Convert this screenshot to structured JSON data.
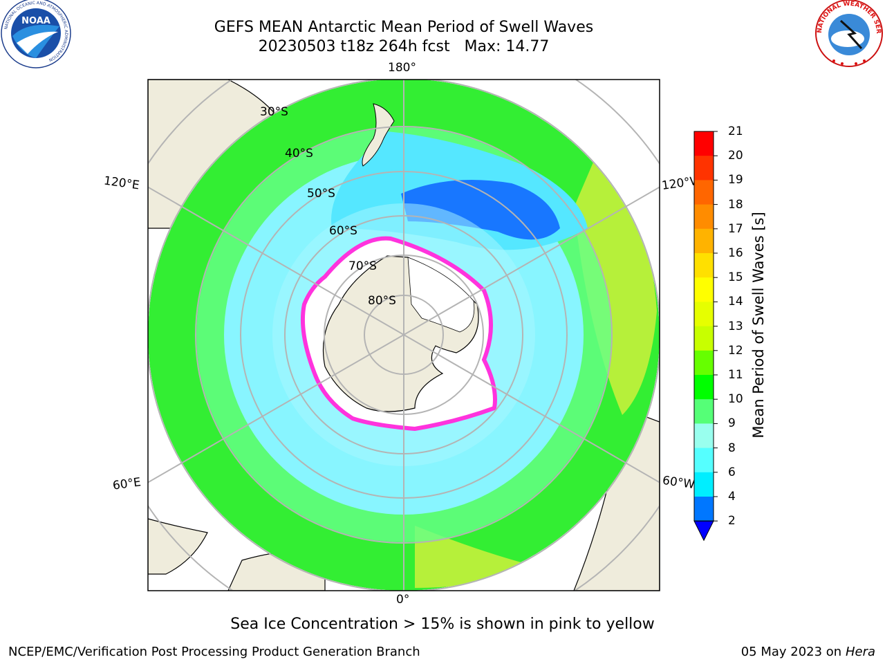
{
  "header": {
    "title_line1": "GEFS MEAN Antarctic Mean Period of Swell Waves",
    "title_line2": "20230503 t18z 264h fcst   Max: 14.77"
  },
  "logos": {
    "left_name": "NOAA",
    "left_ring_text": "NATIONAL OCEANIC AND ATMOSPHERIC ADMINISTRATION",
    "left_ring_text_bottom": "U.S. DEPARTMENT OF COMMERCE",
    "right_ring_text": "NATIONAL WEATHER SERVICE"
  },
  "map": {
    "longitude_labels": {
      "top": "180°",
      "bottom": "0°",
      "left_upper": "120°E",
      "right_upper": "120°W",
      "left_lower": "60°E",
      "right_lower": "60°W"
    },
    "latitude_labels": [
      "30°S",
      "40°S",
      "50°S",
      "60°S",
      "70°S",
      "80°S"
    ],
    "colors": {
      "land": "#efecdc",
      "ice_shelf": "#ffffff",
      "grid": "#b4b4b4",
      "sea_ice": "#ff33dd"
    }
  },
  "colorbar": {
    "label": "Mean Period of Swell Waves [s]",
    "ticks": [
      "21",
      "20",
      "19",
      "18",
      "17",
      "16",
      "15",
      "14",
      "13",
      "12",
      "11",
      "10",
      "9",
      "8",
      "6",
      "4",
      "2"
    ],
    "colors": [
      "#ff0000",
      "#ff3300",
      "#ff6600",
      "#ff8c00",
      "#ffb300",
      "#ffe000",
      "#ffff00",
      "#e6ff00",
      "#c8ff00",
      "#66ff00",
      "#00ff00",
      "#55ff77",
      "#99ffee",
      "#55ffff",
      "#00eeff",
      "#0077ff",
      "#0000ff"
    ]
  },
  "footer": {
    "note": "Sea Ice Concentration > 15% is shown in pink to yellow",
    "credit": "NCEP/EMC/Verification Post Processing Product Generation Branch",
    "date": "05 May 2023 on",
    "host": "Hera"
  }
}
